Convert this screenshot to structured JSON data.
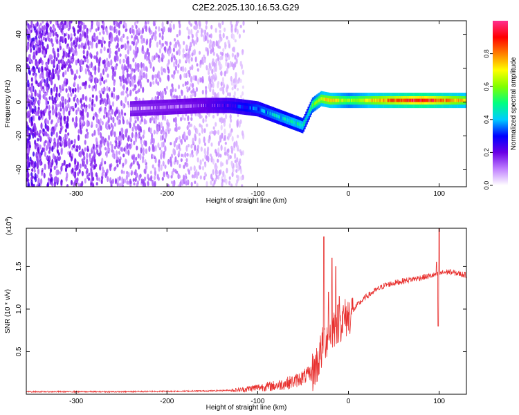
{
  "page_title": "C2E2.2025.130.16.53.G29",
  "chart_data": [
    {
      "type": "heatmap",
      "panel": "top",
      "title": "C2E2.2025.130.16.53.G29",
      "xlabel": "Height of straight line (km)",
      "ylabel": "Frequency (Hz)",
      "xlim": [
        -355,
        130
      ],
      "ylim": [
        -50,
        48
      ],
      "x_ticks": [
        -300,
        -200,
        -100,
        0,
        100
      ],
      "x_tick_labels": [
        "-300",
        "-200",
        "-100",
        "0",
        "100"
      ],
      "y_ticks": [
        -40,
        -20,
        0,
        20,
        40
      ],
      "y_tick_labels": [
        "-40",
        "-20",
        "0",
        "20",
        "40"
      ],
      "colorbar": {
        "label": "Normalized spectral amplitude",
        "range": [
          0,
          1
        ],
        "ticks": [
          0,
          0.2,
          0.4,
          0.6,
          0.8
        ],
        "tick_labels": [
          "0.0",
          "0.2",
          "0.4",
          "0.6",
          "0.8"
        ],
        "colors": [
          "#ffffff",
          "#c080ff",
          "#6a00e6",
          "#0000ff",
          "#00ccff",
          "#00ff80",
          "#80ff00",
          "#ffff00",
          "#ff8000",
          "#ff0000",
          "#ff3090"
        ]
      },
      "ridge": {
        "x": [
          -240,
          -200,
          -160,
          -130,
          -100,
          -80,
          -60,
          -50,
          -45,
          -40,
          -30,
          -20,
          0,
          40,
          80,
          130
        ],
        "y": [
          -4,
          -3,
          -2,
          -2,
          -4,
          -8,
          -12,
          -14,
          -8,
          -2,
          2,
          1,
          1,
          1,
          1,
          1
        ],
        "amplitude": [
          0.1,
          0.12,
          0.15,
          0.25,
          0.35,
          0.4,
          0.45,
          0.45,
          0.4,
          0.55,
          0.7,
          0.75,
          0.6,
          0.8,
          0.95,
          0.7
        ]
      },
      "noise_extent_x": [
        -355,
        -115
      ]
    },
    {
      "type": "line",
      "panel": "bottom",
      "xlabel": "Height of straight line (km)",
      "ylabel": "SNR (10 * v/v)",
      "scale_label": "(x10",
      "scale_exponent": "4",
      "scale_suffix": ")",
      "xlim": [
        -355,
        130
      ],
      "ylim": [
        0,
        1.95
      ],
      "x_ticks": [
        -300,
        -200,
        -100,
        0,
        100
      ],
      "x_tick_labels": [
        "-300",
        "-200",
        "-100",
        "0",
        "100"
      ],
      "y_ticks": [
        0.5,
        1.0,
        1.5
      ],
      "y_tick_labels": [
        "0.5",
        "1.0",
        "1.5"
      ],
      "series": [
        {
          "color": "#e8302e",
          "x": [
            -355,
            -300,
            -250,
            -200,
            -150,
            -120,
            -100,
            -80,
            -60,
            -50,
            -40,
            -35,
            -30,
            -25,
            -20,
            -15,
            -10,
            -5,
            0,
            10,
            20,
            30,
            40,
            60,
            80,
            95,
            100,
            110,
            120,
            130
          ],
          "y": [
            0.03,
            0.03,
            0.03,
            0.035,
            0.04,
            0.05,
            0.08,
            0.1,
            0.15,
            0.2,
            0.25,
            0.35,
            0.5,
            0.65,
            0.75,
            0.8,
            0.85,
            0.88,
            0.92,
            1.05,
            1.15,
            1.22,
            1.28,
            1.33,
            1.37,
            1.4,
            1.42,
            1.44,
            1.42,
            1.4
          ]
        }
      ],
      "spikes": [
        {
          "x": -27,
          "y": 1.85
        },
        {
          "x": -22,
          "y": 1.2
        },
        {
          "x": -18,
          "y": 1.6
        },
        {
          "x": -14,
          "y": 1.5
        },
        {
          "x": -10,
          "y": 1.15
        },
        {
          "x": 97,
          "y": 1.55
        },
        {
          "x": 100,
          "y": 1.98
        },
        {
          "x": 99,
          "y": 0.8
        }
      ]
    }
  ]
}
